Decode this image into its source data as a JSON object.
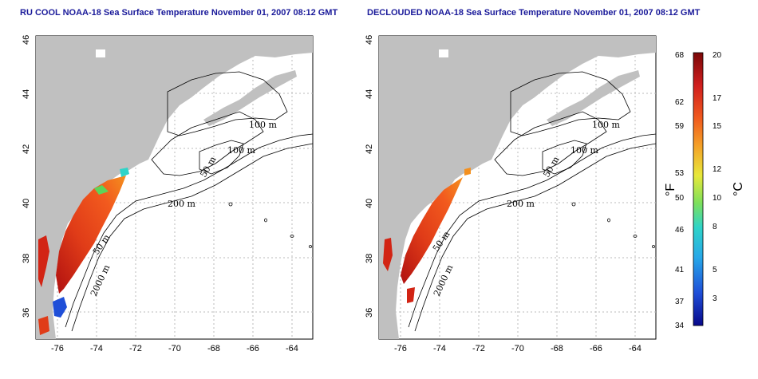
{
  "titles": {
    "left": "RU COOL NOAA-18 Sea Surface Temperature November 01, 2007 08:12 GMT",
    "right": "DECLOUDED NOAA-18 Sea Surface Temperature November 01, 2007 08:12 GMT"
  },
  "axes": {
    "lon_ticks": [
      "-76",
      "-74",
      "-72",
      "-70",
      "-68",
      "-66",
      "-64"
    ],
    "lat_ticks": [
      "36",
      "38",
      "40",
      "42",
      "44",
      "46"
    ]
  },
  "contours": {
    "left": [
      "100 m",
      "100 m",
      "50 m",
      "200 m",
      "50 m",
      "2000 m"
    ],
    "right": [
      "100 m",
      "100 m",
      "50 m",
      "200 m",
      "50 m",
      "2000 m"
    ]
  },
  "colorbar": {
    "fahrenheit_unit": "°F",
    "celsius_unit": "°C",
    "fahrenheit_ticks": [
      "68",
      "62",
      "59",
      "53",
      "50",
      "46",
      "41",
      "37",
      "34"
    ],
    "celsius_ticks": [
      "20",
      "17",
      "15",
      "12",
      "10",
      "8",
      "5",
      "3"
    ],
    "colors": [
      "#08088a",
      "#1f4fd8",
      "#27a8e8",
      "#2fd4c8",
      "#7ee05a",
      "#e8e83a",
      "#f4a028",
      "#f05a1e",
      "#d01e1e",
      "#7a0808"
    ]
  },
  "style": {
    "land_color": "#c0c0c0",
    "title_color": "#1a1a9a"
  }
}
